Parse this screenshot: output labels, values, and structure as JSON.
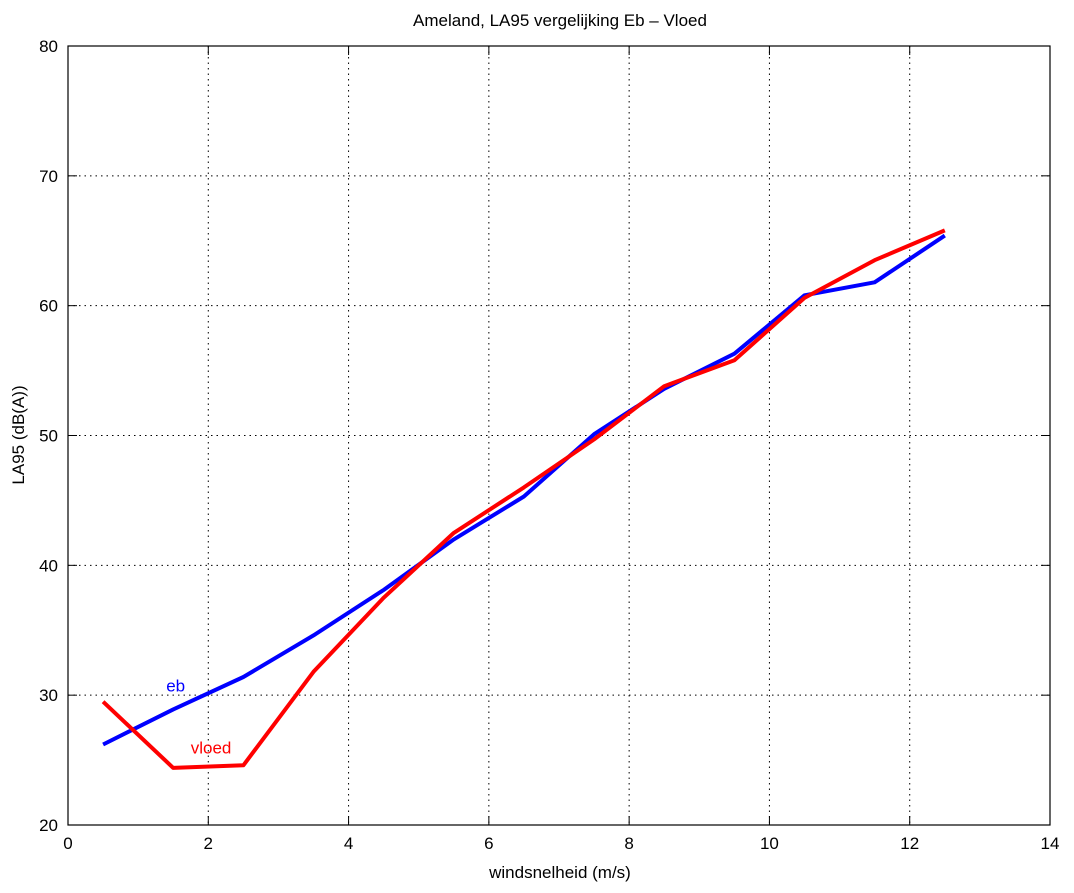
{
  "chart_data": {
    "type": "line",
    "title": "Ameland, LA95 vergelijking Eb – Vloed",
    "xlabel": "windsnelheid (m/s)",
    "ylabel": "LA95 (dB(A))",
    "xlim": [
      0,
      14
    ],
    "ylim": [
      20,
      80
    ],
    "xticks": [
      0,
      2,
      4,
      6,
      8,
      10,
      12,
      14
    ],
    "yticks": [
      20,
      30,
      40,
      50,
      60,
      70,
      80
    ],
    "grid": true,
    "series": [
      {
        "name": "eb",
        "color": "#0000ff",
        "x": [
          0.5,
          1.5,
          2.5,
          3.5,
          4.5,
          5.5,
          6.5,
          7.5,
          8.5,
          9.5,
          10.5,
          11.5,
          12.5
        ],
        "values": [
          26.2,
          28.9,
          31.4,
          34.6,
          38.1,
          42.0,
          45.3,
          50.1,
          53.6,
          56.3,
          60.8,
          61.8,
          65.4
        ]
      },
      {
        "name": "vloed",
        "color": "#ff0000",
        "x": [
          0.5,
          1.5,
          2.5,
          3.5,
          4.5,
          5.5,
          6.5,
          7.5,
          8.5,
          9.5,
          10.5,
          11.5,
          12.5
        ],
        "values": [
          29.5,
          24.4,
          24.6,
          31.8,
          37.5,
          42.5,
          46.0,
          49.7,
          53.8,
          55.8,
          60.6,
          63.5,
          65.8
        ]
      }
    ]
  }
}
